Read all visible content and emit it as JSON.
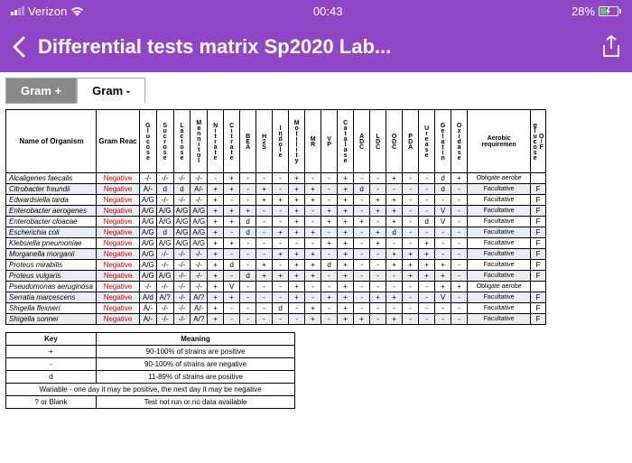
{
  "status": {
    "carrier": "Verizon",
    "time": "00:43",
    "battery_pct": "28%"
  },
  "nav": {
    "title": "Differential tests matrix Sp2020 Lab..."
  },
  "tabs": {
    "pos": "Gram +",
    "neg": "Gram -"
  },
  "headers": {
    "name": "Name of Organism",
    "gram": "Gram Reac",
    "tests": [
      "Glucose",
      "Sucrose",
      "Lactose",
      "Mannitol",
      "Nitrate",
      "Citrate",
      "BEA",
      "H2S",
      "Indole",
      "Motility",
      "MR",
      "VP",
      "Catalase",
      "ADC",
      "LDC",
      "ODC",
      "PDA",
      "Urease",
      "Gelatin",
      "Oxidase"
    ],
    "aerobic": "Aerobic requiremen",
    "of": "O/F glucose"
  },
  "rows": [
    {
      "alt": 0,
      "name": "Alcaligenes faecalis",
      "gram": "Negative",
      "t": [
        "-/-",
        "-/-",
        "-/-",
        "-/-",
        "-",
        "+",
        "-",
        "-",
        "-",
        "+",
        "-",
        "-",
        "+",
        "-",
        "-",
        "+",
        "-",
        "-",
        "d",
        "+"
      ],
      "aer": "Obligate aerobe",
      "of": ""
    },
    {
      "alt": 1,
      "name": "Citrobacter freundii",
      "gram": "Negative",
      "t": [
        "A/-",
        "d",
        "d",
        "A/-",
        "+",
        "+",
        "-",
        "+",
        "-",
        "+",
        "+",
        "-",
        "+",
        "d",
        "-",
        "-",
        "-",
        "-",
        "d",
        "-"
      ],
      "aer": "Facultative",
      "of": "F"
    },
    {
      "alt": 0,
      "name": "Edwardsiella tarda",
      "gram": "Negative",
      "t": [
        "A/G",
        "-/-",
        "-/-",
        "-/-",
        "+",
        "-",
        "-",
        "+",
        "+",
        "+",
        "+",
        "-",
        "+",
        "-",
        "+",
        "+",
        "-",
        "-",
        "-",
        "-"
      ],
      "aer": "Facultative",
      "of": "F"
    },
    {
      "alt": 1,
      "name": "Enterobacter aerogenes",
      "gram": "Negative",
      "t": [
        "A/G",
        "A/G",
        "A/G",
        "A/G",
        "+",
        "+",
        "+",
        "-",
        "-",
        "+",
        "-",
        "+",
        "+",
        "-",
        "+",
        "+",
        "-",
        "-",
        "V",
        "-"
      ],
      "aer": "Facultative",
      "of": "F"
    },
    {
      "alt": 0,
      "name": "Enterobacter cloacae",
      "gram": "Negative",
      "t": [
        "A/G",
        "A/G",
        "A/G",
        "A/G",
        "+",
        "+",
        "d",
        "-",
        "-",
        "+",
        "-",
        "+",
        "+",
        "+",
        "-",
        "+",
        "-",
        "d",
        "V",
        "-"
      ],
      "aer": "Facultative",
      "of": "F"
    },
    {
      "alt": 1,
      "name": "Escherichia coli",
      "gram": "Negative",
      "t": [
        "A/G",
        "d",
        "A/G",
        "A/G",
        "+",
        "-",
        "d",
        "-",
        "+",
        "+",
        "+",
        "-",
        "+",
        "-",
        "+",
        "d",
        "-",
        "-",
        "-",
        "-"
      ],
      "aer": "Facultative",
      "of": "F"
    },
    {
      "alt": 0,
      "name": "Klebsiella pneumoniae",
      "gram": "Negative",
      "t": [
        "A/G",
        "A/G",
        "A/G",
        "A/G",
        "+",
        "+",
        "-",
        "-",
        "-",
        "-",
        "-",
        "+",
        "+",
        "-",
        "+",
        "-",
        "-",
        "+",
        "-",
        "-"
      ],
      "aer": "Facultative",
      "of": "F"
    },
    {
      "alt": 1,
      "name": "Morganella morganii",
      "gram": "Negative",
      "t": [
        "A/G",
        "-/-",
        "-/-",
        "-/-",
        "+",
        "-",
        "-",
        "-",
        "+",
        "+",
        "+",
        "-",
        "+",
        "-",
        "-",
        "+",
        "+",
        "+",
        "-",
        "-"
      ],
      "aer": "Facultative",
      "of": "F"
    },
    {
      "alt": 0,
      "name": "Proteus mirabilis",
      "gram": "Negative",
      "t": [
        "A/G",
        "-/-",
        "-/-",
        "-/-",
        "+",
        "d",
        "-",
        "+",
        "-",
        "+",
        "+",
        "d",
        "+",
        "-",
        "-",
        "+",
        "+",
        "+",
        "+",
        "-"
      ],
      "aer": "Facultative",
      "of": "F"
    },
    {
      "alt": 1,
      "name": "Proteus vulgaris",
      "gram": "Negative",
      "t": [
        "A/G",
        "A/G",
        "-/-",
        "-/-",
        "+",
        "-",
        "d",
        "+",
        "+",
        "+",
        "+",
        "-",
        "+",
        "-",
        "-",
        "-",
        "+",
        "+",
        "+",
        "-"
      ],
      "aer": "Facultative",
      "of": "F"
    },
    {
      "alt": 0,
      "name": "Pseudomonas aeruginosa",
      "gram": "Negative",
      "t": [
        "-/-",
        "-/-",
        "-/-",
        "-/-",
        "+",
        "V",
        "-",
        "-",
        "-",
        "+",
        "-",
        "-",
        "+",
        "-",
        "-",
        "-",
        "-",
        "-",
        "+",
        "+"
      ],
      "aer": "Obligate aerobe",
      "of": ""
    },
    {
      "alt": 1,
      "name": "Serratia marcescens",
      "gram": "Negative",
      "t": [
        "A/d",
        "A/?",
        "-/-",
        "A/?",
        "+",
        "+",
        "-",
        "-",
        "-",
        "+",
        "-",
        "+",
        "+",
        "-",
        "+",
        "+",
        "-",
        "-",
        "V",
        "-"
      ],
      "aer": "Facultative",
      "of": "F"
    },
    {
      "alt": 0,
      "name": "Shigella flexneri",
      "gram": "Negative",
      "t": [
        "A/-",
        "-/-",
        "-/-",
        "A/-",
        "+",
        "-",
        "-",
        "-",
        "d",
        "-",
        "+",
        "-",
        "+",
        "-",
        "-",
        "-",
        "-",
        "-",
        "-",
        "-"
      ],
      "aer": "Facultative",
      "of": "F"
    },
    {
      "alt": 1,
      "name": "Shigella sonnei",
      "gram": "Negative",
      "t": [
        "A/-",
        "-/-",
        "-/-",
        "A/?",
        "+",
        "-",
        "-",
        "-",
        "-",
        "-",
        "+",
        "-",
        "+",
        "+",
        "-",
        "+",
        "-",
        "-",
        "-",
        "-"
      ],
      "aer": "Facultative",
      "of": "F"
    }
  ],
  "key": {
    "h1": "Key",
    "h2": "Meaning",
    "rows": [
      {
        "s": "+",
        "m": "90-100% of strains are positive"
      },
      {
        "s": "-",
        "m": "90-100% of strains are negative"
      },
      {
        "s": "d",
        "m": "11-89% of strains are positive"
      },
      {
        "s": "Wariable - one day it may be positive, the next day it may be negative",
        "m": ""
      },
      {
        "s": "? or Blank",
        "m": "Test not run or no data available"
      }
    ]
  }
}
